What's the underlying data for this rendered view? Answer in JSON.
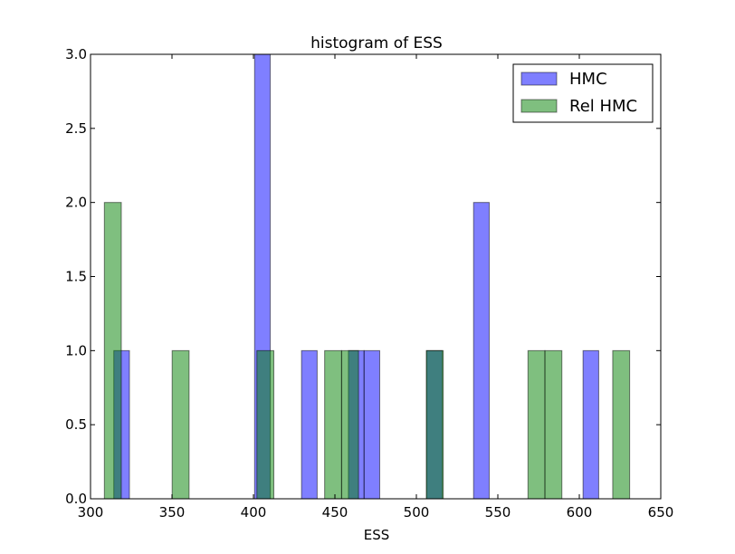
{
  "chart_data": {
    "type": "bar",
    "title": "histogram of ESS",
    "xlabel": "ESS",
    "ylabel": "",
    "xlim": [
      300,
      650
    ],
    "ylim": [
      0,
      3
    ],
    "xticks": [
      300,
      350,
      400,
      450,
      500,
      550,
      600,
      650
    ],
    "yticks": [
      0.0,
      0.5,
      1.0,
      1.5,
      2.0,
      2.5,
      3.0
    ],
    "ytick_labels": [
      "0.0",
      "0.5",
      "1.0",
      "1.5",
      "2.0",
      "2.5",
      "3.0"
    ],
    "legend_position": "top-right",
    "series": [
      {
        "name": "HMC",
        "color": "#0000ff",
        "bins": [
          {
            "x0": 314.3,
            "x1": 323.9,
            "count": 1
          },
          {
            "x0": 400.7,
            "x1": 410.3,
            "count": 3
          },
          {
            "x0": 429.5,
            "x1": 439.1,
            "count": 1
          },
          {
            "x0": 458.3,
            "x1": 467.9,
            "count": 1
          },
          {
            "x0": 467.9,
            "x1": 477.5,
            "count": 1
          },
          {
            "x0": 506.3,
            "x1": 515.9,
            "count": 1
          },
          {
            "x0": 535.1,
            "x1": 544.7,
            "count": 2
          },
          {
            "x0": 602.3,
            "x1": 611.9,
            "count": 1
          }
        ]
      },
      {
        "name": "Rel HMC",
        "color": "#008000",
        "bins": [
          {
            "x0": 308.5,
            "x1": 318.9,
            "count": 2
          },
          {
            "x0": 350.1,
            "x1": 360.5,
            "count": 1
          },
          {
            "x0": 402.1,
            "x1": 412.5,
            "count": 1
          },
          {
            "x0": 443.7,
            "x1": 454.1,
            "count": 1
          },
          {
            "x0": 454.1,
            "x1": 464.5,
            "count": 1
          },
          {
            "x0": 506.1,
            "x1": 516.5,
            "count": 1
          },
          {
            "x0": 568.5,
            "x1": 578.9,
            "count": 1
          },
          {
            "x0": 578.9,
            "x1": 589.3,
            "count": 1
          },
          {
            "x0": 620.5,
            "x1": 630.9,
            "count": 1
          }
        ]
      }
    ]
  }
}
